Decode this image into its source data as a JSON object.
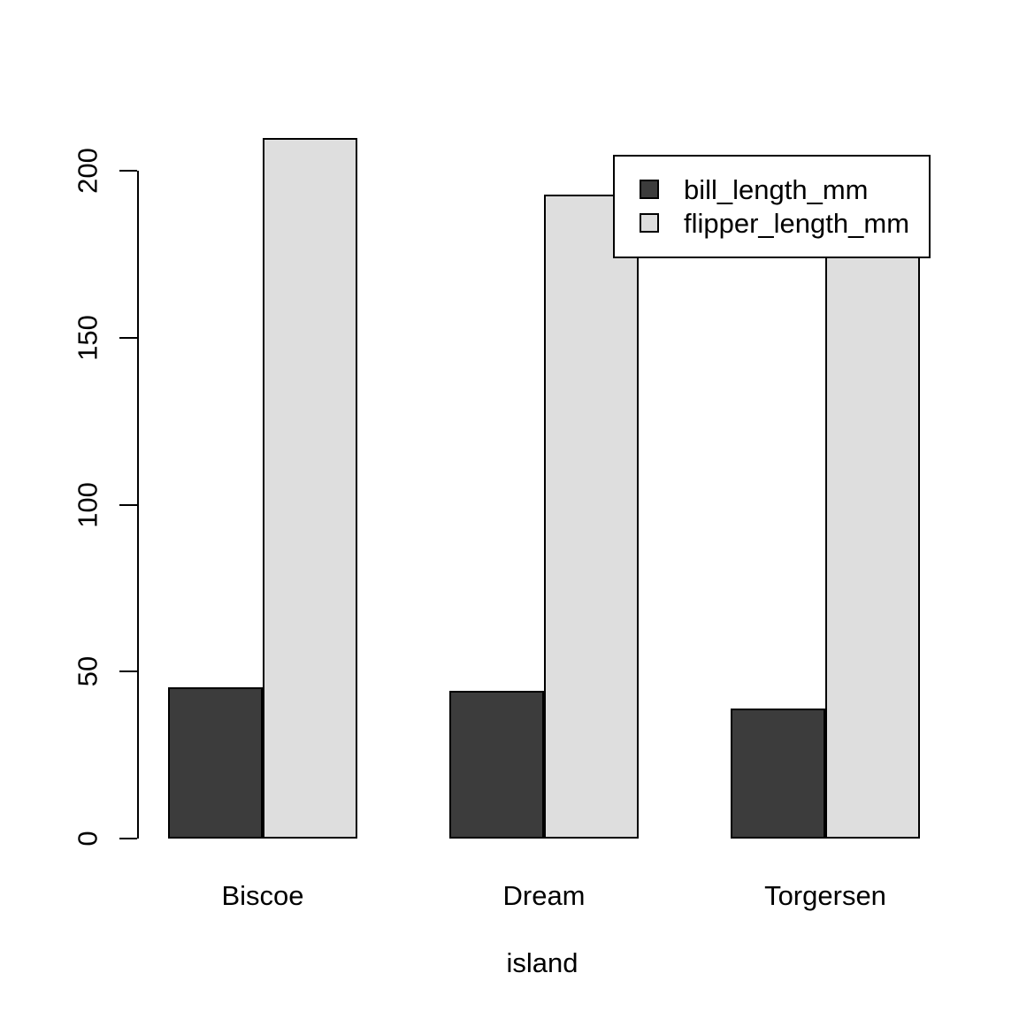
{
  "chart_data": {
    "type": "bar",
    "title": "",
    "categories": [
      "Biscoe",
      "Dream",
      "Torgersen"
    ],
    "series": [
      {
        "name": "bill_length_mm",
        "color": "#3C3C3C",
        "values": [
          45.3,
          44.2,
          38.9
        ]
      },
      {
        "name": "flipper_length_mm",
        "color": "#DEDEDE",
        "values": [
          209.7,
          192.9,
          191.2
        ]
      }
    ],
    "xlabel": "island",
    "ylabel": "",
    "ylim": [
      0,
      200
    ],
    "yticks": [
      "0",
      "50",
      "100",
      "150",
      "200"
    ],
    "grid": false,
    "legend_position": "top-right",
    "bar_border_color": "#000000",
    "background_color": "#ffffff"
  }
}
